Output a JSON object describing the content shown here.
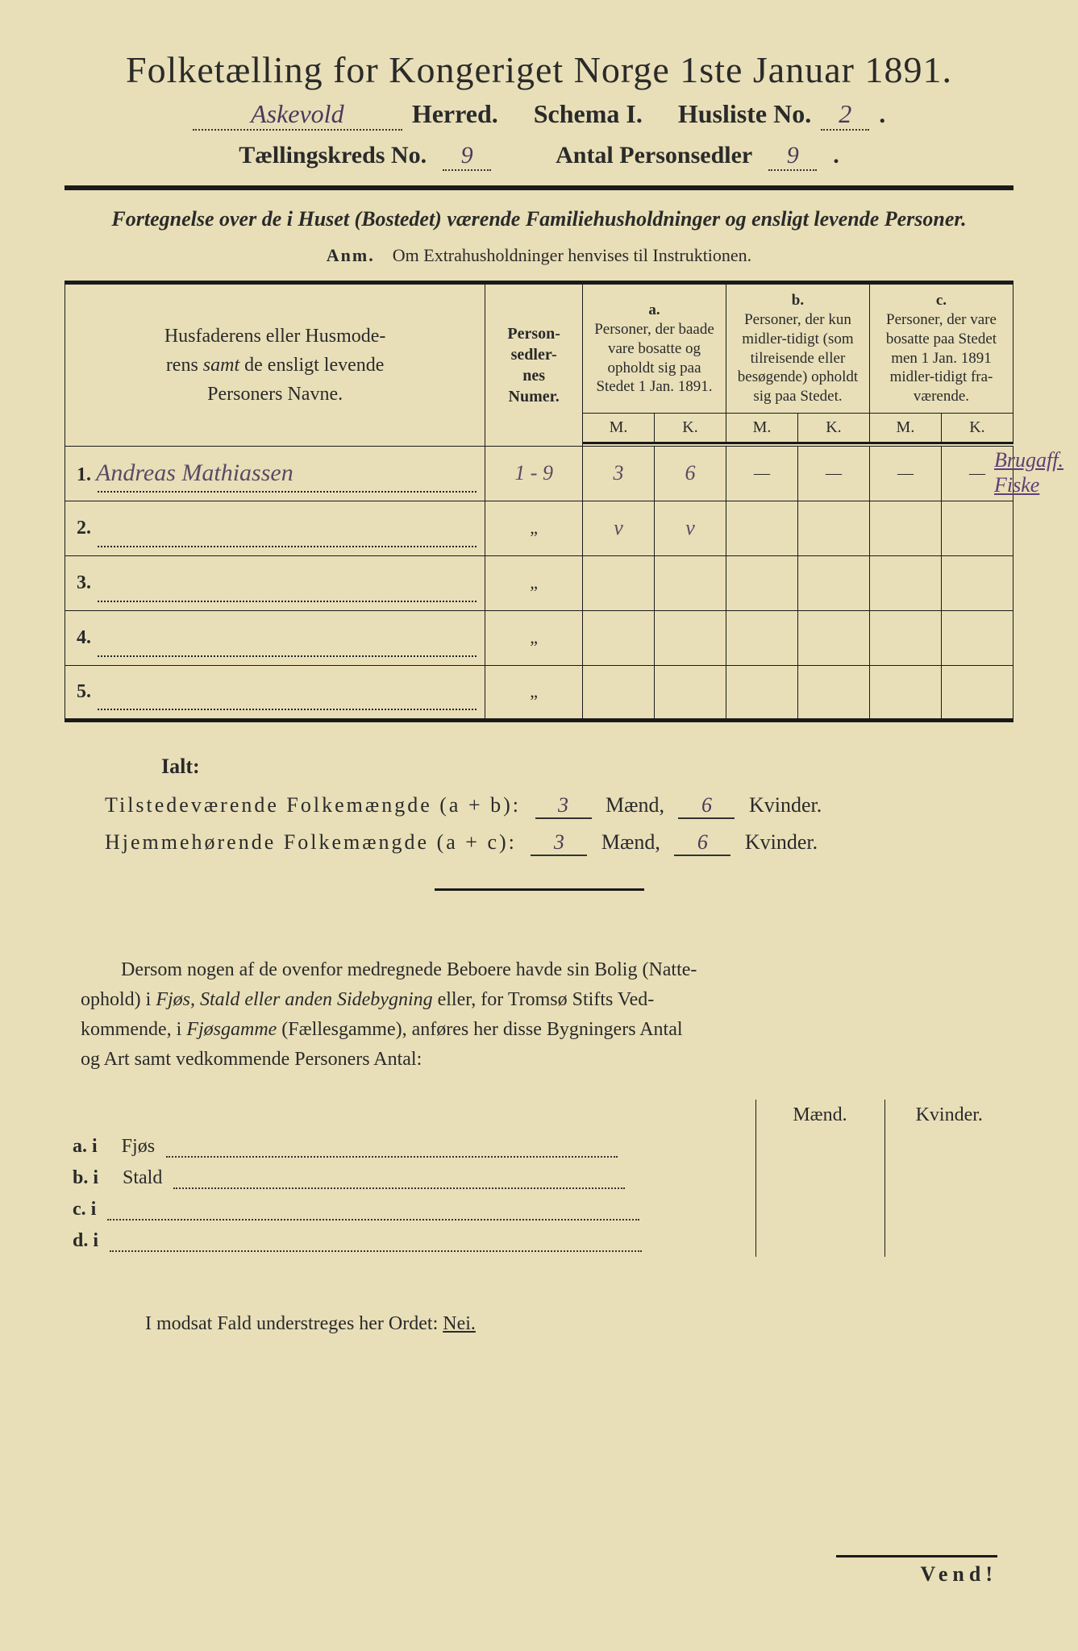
{
  "title": "Folketælling for Kongeriget Norge 1ste Januar 1891.",
  "header": {
    "herred_value": "Askevold",
    "herred_label": "Herred.",
    "schema_label": "Schema I.",
    "husliste_label": "Husliste No.",
    "husliste_value": "2",
    "kreds_label": "Tællingskreds No.",
    "kreds_value": "9",
    "antal_label": "Antal Personsedler",
    "antal_value": "9"
  },
  "fortegnelse": "Fortegnelse over de i Huset (Bostedet) værende Familiehusholdninger og ensligt levende Personer.",
  "anm_label": "Anm.",
  "anm_text": "Om Extrahusholdninger henvises til Instruktionen.",
  "table": {
    "names_head": "Husfaderens eller Husmoderens samt de ensligt levende Personers Navne.",
    "nummer_head": "Person-sedler-nes Numer.",
    "col_a_label": "a.",
    "col_a_text": "Personer, der baade vare bosatte og opholdt sig paa Stedet 1 Jan. 1891.",
    "col_b_label": "b.",
    "col_b_text": "Personer, der kun midler-tidigt (som tilreisende eller besøgende) opholdt sig paa Stedet.",
    "col_c_label": "c.",
    "col_c_text": "Personer, der vare bosatte paa Stedet men 1 Jan. 1891 midler-tidigt fra-værende.",
    "m_label": "M.",
    "k_label": "K.",
    "rows": [
      {
        "n": "1.",
        "name": "Andreas Mathiassen",
        "nummer": "1 - 9",
        "aM": "3",
        "aK": "6",
        "bM": "—",
        "bK": "—",
        "cM": "—",
        "cK": "—"
      },
      {
        "n": "2.",
        "name": "",
        "nummer": "\"",
        "aM": "v",
        "aK": "v",
        "bM": "",
        "bK": "",
        "cM": "",
        "cK": ""
      },
      {
        "n": "3.",
        "name": "",
        "nummer": "\"",
        "aM": "",
        "aK": "",
        "bM": "",
        "bK": "",
        "cM": "",
        "cK": ""
      },
      {
        "n": "4.",
        "name": "",
        "nummer": "\"",
        "aM": "",
        "aK": "",
        "bM": "",
        "bK": "",
        "cM": "",
        "cK": ""
      },
      {
        "n": "5.",
        "name": "",
        "nummer": "\"",
        "aM": "",
        "aK": "",
        "bM": "",
        "bK": "",
        "cM": "",
        "cK": ""
      }
    ]
  },
  "margin_note_1": "Brugaff.",
  "margin_note_2": "Fiske",
  "ialt_label": "Ialt:",
  "sum1": {
    "label": "Tilstedeværende Folkemængde (a + b):",
    "m": "3",
    "mlabel": "Mænd,",
    "k": "6",
    "klabel": "Kvinder."
  },
  "sum2": {
    "label": "Hjemmehørende Folkemængde (a + c):",
    "m": "3",
    "mlabel": "Mænd,",
    "k": "6",
    "klabel": "Kvinder."
  },
  "para": "Dersom nogen af de ovenfor medregnede Beboere havde sin Bolig (Natteophold) i Fjøs, Stald eller anden Sidebygning eller, for Tromsø Stifts Vedkommende, i Fjøsgamme (Fællesgamme), anføres her disse Bygningers Antal og Art samt vedkommende Personers Antal:",
  "bottom": {
    "maend": "Mænd.",
    "kvinder": "Kvinder.",
    "a": "a.  i",
    "a_label": "Fjøs",
    "b": "b.  i",
    "b_label": "Stald",
    "c": "c.  i",
    "d": "d.  i"
  },
  "nei_line": "I modsat Fald understreges her Ordet: ",
  "nei": "Nei.",
  "vend": "Vend!",
  "colors": {
    "paper": "#e8dfb8",
    "ink": "#2a2a2a",
    "handwriting": "#5a4a65"
  }
}
